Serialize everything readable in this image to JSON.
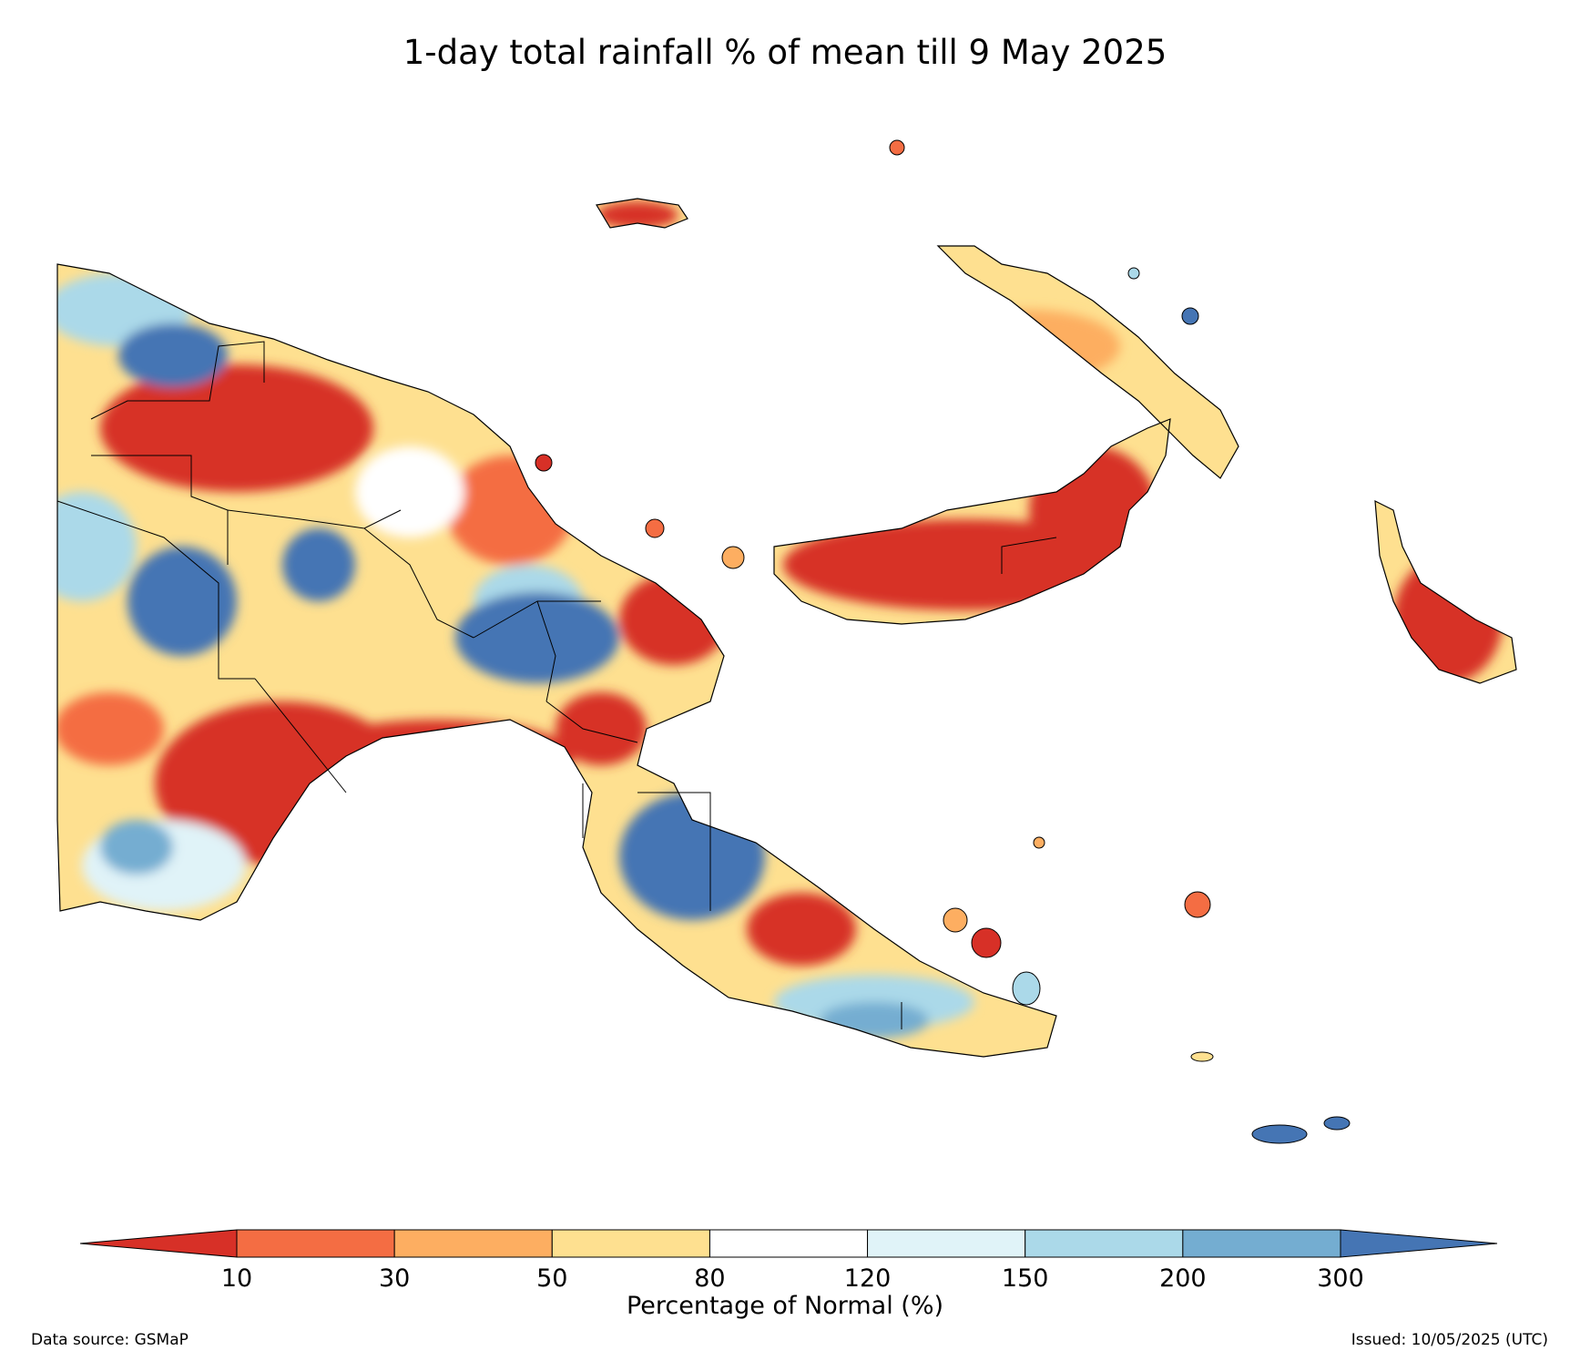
{
  "title": "1-day total rainfall % of mean till 9 May 2025",
  "colorbar": {
    "label": "Percentage of Normal (%)",
    "ticks": [
      "10",
      "30",
      "50",
      "80",
      "120",
      "150",
      "200",
      "300"
    ],
    "colors": [
      "#d73027",
      "#f46d43",
      "#fdae61",
      "#fee090",
      "#ffffff",
      "#e0f3f8",
      "#abd9e9",
      "#74add1",
      "#4575b4"
    ]
  },
  "footer": {
    "data_source": "Data source: GSMaP",
    "issued": "Issued: 10/05/2025 (UTC)"
  }
}
